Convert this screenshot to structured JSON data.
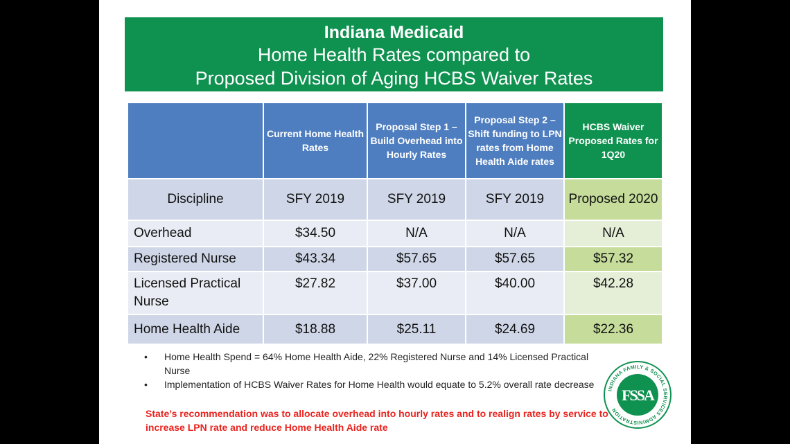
{
  "title": {
    "line1": "Indiana Medicaid",
    "line2": "Home Health Rates compared to",
    "line3": "Proposed Division of Aging HCBS Waiver Rates"
  },
  "table": {
    "headers": [
      "",
      "Current Home Health Rates",
      "Proposal  Step 1 – Build Overhead into Hourly Rates",
      "Proposal  Step 2 – Shift funding to LPN rates from Home Health Aide rates",
      "HCBS Waiver Proposed Rates for 1Q20"
    ],
    "rows": [
      [
        "Discipline",
        "SFY 2019",
        "SFY 2019",
        "SFY 2019",
        "Proposed 2020"
      ],
      [
        "Overhead",
        "$34.50",
        "N/A",
        "N/A",
        "N/A"
      ],
      [
        "Registered Nurse",
        "$43.34",
        "$57.65",
        "$57.65",
        "$57.32"
      ],
      [
        "Licensed Practical Nurse",
        "$27.82",
        "$37.00",
        "$40.00",
        "$42.28"
      ],
      [
        "Home Health Aide",
        "$18.88",
        "$25.11",
        "$24.69",
        "$22.36"
      ]
    ]
  },
  "bullets": [
    "Home Health Spend = 64% Home Health Aide, 22% Registered Nurse and 14% Licensed Practical Nurse",
    "Implementation of HCBS Waiver Rates for Home Health  would equate to 5.2% overall rate decrease"
  ],
  "bullet_symbol": "•",
  "note": "State’s recommendation was to allocate overhead into hourly rates  and to  realign rates by service to increase LPN rate and reduce Home Health Aide rate",
  "logo": {
    "ring_text": "INDIANA FAMILY & SOCIAL SERVICES ADMINISTRATION",
    "monogram": "FSSA"
  },
  "colors": {
    "title_green": "#0f9150",
    "header_blue": "#4f7ec0",
    "note_red": "#e8231e"
  }
}
